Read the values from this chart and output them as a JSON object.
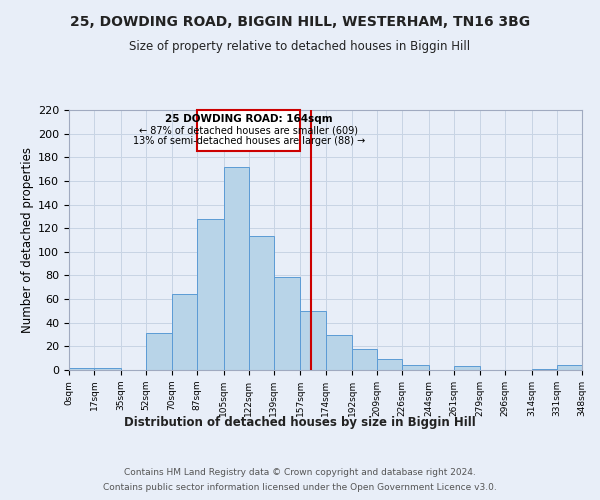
{
  "title": "25, DOWDING ROAD, BIGGIN HILL, WESTERHAM, TN16 3BG",
  "subtitle": "Size of property relative to detached houses in Biggin Hill",
  "xlabel": "Distribution of detached houses by size in Biggin Hill",
  "ylabel": "Number of detached properties",
  "footer1": "Contains HM Land Registry data © Crown copyright and database right 2024.",
  "footer2": "Contains public sector information licensed under the Open Government Licence v3.0.",
  "bin_edges": [
    0,
    17,
    35,
    52,
    70,
    87,
    105,
    122,
    139,
    157,
    174,
    192,
    209,
    226,
    244,
    261,
    279,
    296,
    314,
    331,
    348
  ],
  "bar_heights": [
    2,
    2,
    0,
    31,
    64,
    128,
    172,
    113,
    79,
    50,
    30,
    18,
    9,
    4,
    0,
    3,
    0,
    0,
    1,
    4
  ],
  "bar_color": "#b8d4e8",
  "bar_edge_color": "#5b9bd5",
  "marker_value": 164,
  "marker_color": "#cc0000",
  "annotation_title": "25 DOWDING ROAD: 164sqm",
  "annotation_line1": "← 87% of detached houses are smaller (609)",
  "annotation_line2": "13% of semi-detached houses are larger (88) →",
  "annotation_box_color": "#ffffff",
  "annotation_border_color": "#cc0000",
  "ylim": [
    0,
    220
  ],
  "yticks": [
    0,
    20,
    40,
    60,
    80,
    100,
    120,
    140,
    160,
    180,
    200,
    220
  ],
  "tick_labels": [
    "0sqm",
    "17sqm",
    "35sqm",
    "52sqm",
    "70sqm",
    "87sqm",
    "105sqm",
    "122sqm",
    "139sqm",
    "157sqm",
    "174sqm",
    "192sqm",
    "209sqm",
    "226sqm",
    "244sqm",
    "261sqm",
    "279sqm",
    "296sqm",
    "314sqm",
    "331sqm",
    "348sqm"
  ],
  "grid_color": "#c8d4e4",
  "background_color": "#e8eef8"
}
